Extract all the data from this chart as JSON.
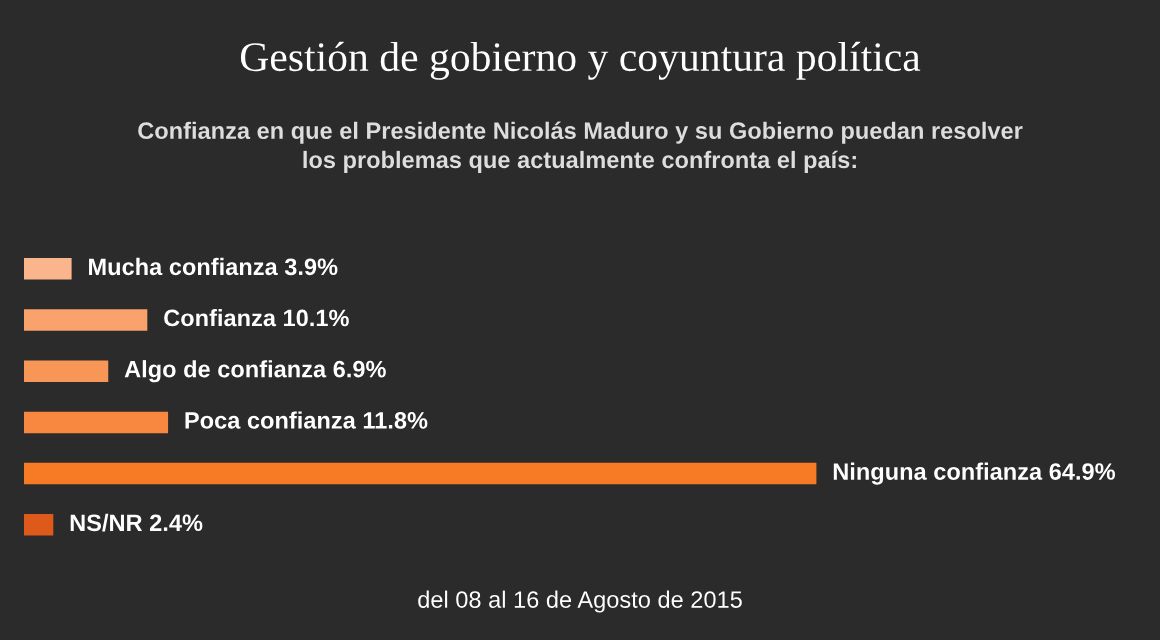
{
  "chart_data": {
    "type": "bar",
    "orientation": "horizontal",
    "title": "Gestión de gobierno y coyuntura política",
    "subtitle": "Confianza en que el Presidente Nicolás Maduro y su Gobierno puedan resolver\nlos problemas que actualmente confronta el país:",
    "categories": [
      null,
      null,
      null,
      null,
      null,
      null
    ],
    "values": [
      3.9,
      10.1,
      6.9,
      11.8,
      64.9,
      2.4
    ],
    "value_labels": [
      "Mucha confianza 3.9%",
      "Confianza 10.1%",
      "Algo de confianza 6.9%",
      "Poca confianza 11.8%",
      "Ninguna confianza 64.9%",
      "NS/NR 2.4%"
    ],
    "colors": [
      "#fbb58c",
      "#f9a26c",
      "#f89658",
      "#f8883f",
      "#f77a25",
      "#de5a1a"
    ],
    "annotations": [
      "del 08 al 16 de Agosto de 2015"
    ],
    "grid": false,
    "legend": false,
    "tick_labels": false
  }
}
